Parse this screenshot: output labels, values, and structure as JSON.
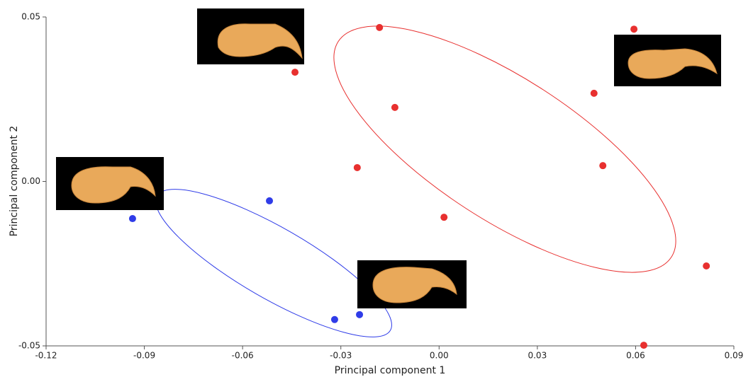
{
  "chart_data": {
    "type": "scatter",
    "xlabel": "Principal component 1",
    "ylabel": "Principal component 2",
    "xlim": [
      -0.12,
      0.09
    ],
    "ylim": [
      -0.05,
      0.05
    ],
    "xticks": [
      -0.12,
      -0.09,
      -0.06,
      -0.03,
      {
        "value": 0,
        "label": "0.00"
      },
      0.03,
      0.06,
      0.09
    ],
    "yticks": [
      -0.05,
      {
        "value": 0,
        "label": "0.00"
      },
      0.05
    ],
    "series": [
      {
        "color": "#e8302f",
        "x": [
          -0.0182,
          -0.044,
          0.0595,
          0.0473,
          -0.0135,
          -0.025,
          0.05,
          0.0015,
          0.0816,
          0.0625
        ],
        "values": [
          0.0468,
          0.0332,
          0.0463,
          0.0268,
          0.0225,
          0.0042,
          0.0048,
          -0.0109,
          -0.0257,
          -0.0498
        ]
      },
      {
        "color": "#2f3ce8",
        "x": [
          -0.0936,
          -0.0518,
          -0.0319,
          -0.0243
        ],
        "values": [
          -0.0113,
          -0.0059,
          -0.042,
          -0.0405
        ]
      }
    ]
  }
}
